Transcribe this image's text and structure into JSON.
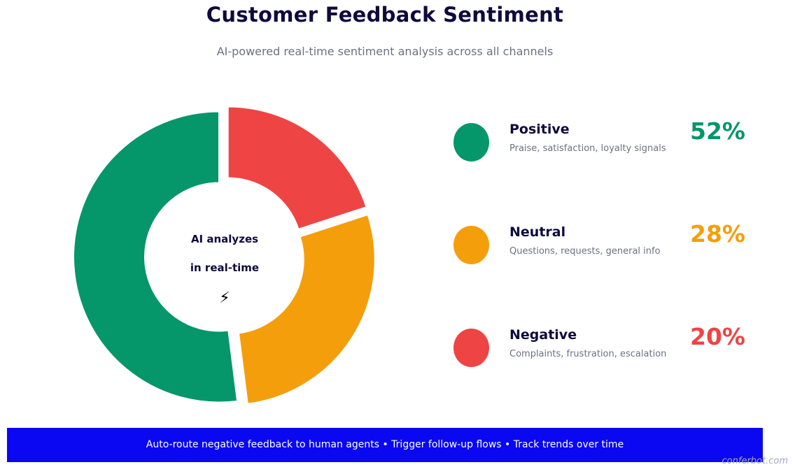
{
  "title": "Customer Feedback Sentiment",
  "subtitle": "AI-powered real-time sentiment analysis across all channels",
  "center": {
    "line1": "AI analyzes",
    "line2": "in real-time",
    "icon": "⚡",
    "icon_name": "lightning-bolt-icon"
  },
  "chart_data": {
    "type": "pie",
    "variant": "donut",
    "title": "Customer Feedback Sentiment",
    "subtitle": "AI-powered real-time sentiment analysis across all channels",
    "categories": [
      "Positive",
      "Neutral",
      "Negative"
    ],
    "values": [
      52,
      28,
      20
    ],
    "colors": [
      "#059669",
      "#f59e0b",
      "#ef4444"
    ],
    "exploded": true,
    "legend_placement": "right"
  },
  "legend": [
    {
      "name": "Positive",
      "desc": "Praise, satisfaction, loyalty signals",
      "pct": "52%",
      "color": "#059669"
    },
    {
      "name": "Neutral",
      "desc": "Questions, requests, general info",
      "pct": "28%",
      "color": "#f59e0b"
    },
    {
      "name": "Negative",
      "desc": "Complaints, frustration, escalation",
      "pct": "20%",
      "color": "#ef4444"
    }
  ],
  "banner": {
    "text": "Auto-route negative feedback to human agents • Trigger follow-up flows • Track trends over time",
    "color": "#0a07f2"
  },
  "watermark": "conferbot.com"
}
